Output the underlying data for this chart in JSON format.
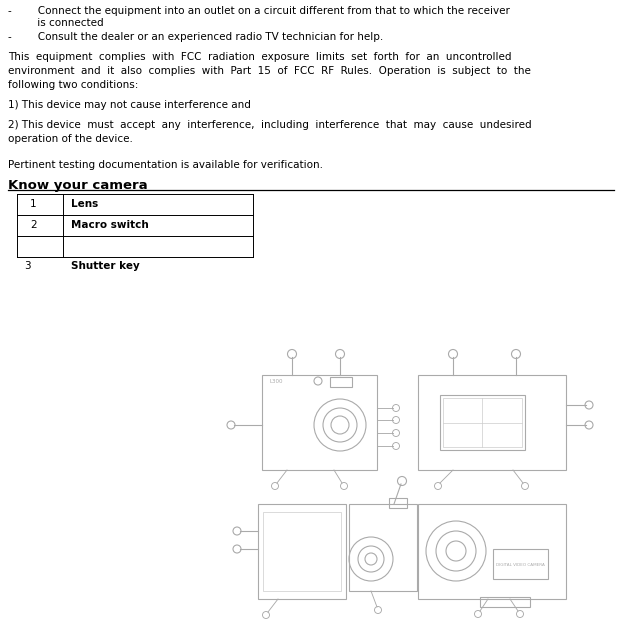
{
  "bullet1_line1": "-        Connect the equipment into an outlet on a circuit different from that to which the receiver",
  "bullet1_line2": "         is connected",
  "bullet2": "-        Consult the dealer or an experienced radio TV technician for help.",
  "para1_line1": "This  equipment  complies  with  FCC  radiation  exposure  limits  set  forth  for  an  uncontrolled",
  "para1_line2": "environment  and  it  also  complies  with  Part  15  of  FCC  RF  Rules.  Operation  is  subject  to  the",
  "para1_line3": "following two conditions:",
  "para2": "1) This device may not cause interference and",
  "para3_line1": "2) This device  must  accept  any  interference,  including  interference  that  may  cause  undesired",
  "para3_line2": "operation of the device.",
  "para4": "Pertinent testing documentation is available for verification.",
  "section_title": "Know your camera",
  "bg_color": "#ffffff",
  "text_color": "#000000",
  "font_size_body": 7.5,
  "font_size_section": 9.5,
  "table_row1_num": "1",
  "table_row1_label": "Lens",
  "table_row2_num": "2",
  "table_row2_label": "Macro switch",
  "table_row3_num": "3",
  "table_row3_label": "Shutter key",
  "gray": "#aaaaaa"
}
